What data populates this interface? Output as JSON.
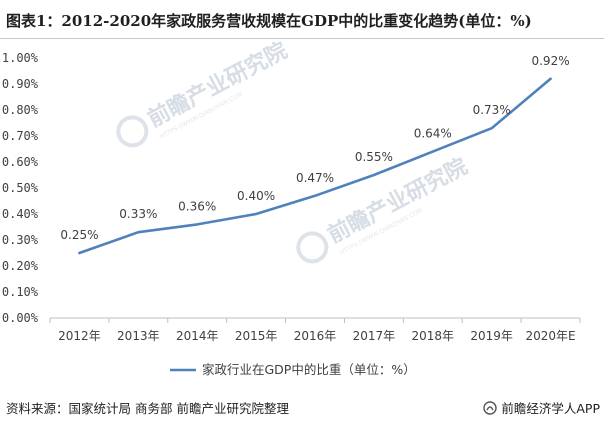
{
  "title": "图表1：2012-2020年家政服务营收规模在GDP中的比重变化趋势(单位：%)",
  "source": "资料来源：国家统计局 商务部 前瞻产业研究院整理",
  "brand": "前瞻经济学人APP",
  "watermark": {
    "text": "前瞻产业研究院",
    "sub": "HTTPS://WWW.QIANZHAN.COM"
  },
  "colors": {
    "line": "#4f81bd",
    "axis": "#bfbfbf",
    "text": "#404040"
  },
  "chart_data": {
    "type": "line",
    "title": "",
    "xlabel": "",
    "ylabel": "",
    "categories": [
      "2012年",
      "2013年",
      "2014年",
      "2015年",
      "2016年",
      "2017年",
      "2018年",
      "2019年",
      "2020年E"
    ],
    "series": [
      {
        "name": "家政行业在GDP中的比重（单位：%）",
        "values": [
          0.25,
          0.33,
          0.36,
          0.4,
          0.47,
          0.55,
          0.64,
          0.73,
          0.92
        ]
      }
    ],
    "data_labels": [
      "0.25%",
      "0.33%",
      "0.36%",
      "0.40%",
      "0.47%",
      "0.55%",
      "0.64%",
      "0.73%",
      "0.92%"
    ],
    "yticks": [
      "0.00%",
      "0.10%",
      "0.20%",
      "0.30%",
      "0.40%",
      "0.50%",
      "0.60%",
      "0.70%",
      "0.80%",
      "0.90%",
      "1.00%"
    ],
    "ylim": [
      0,
      1.0
    ],
    "grid": false,
    "legend": "bottom"
  }
}
